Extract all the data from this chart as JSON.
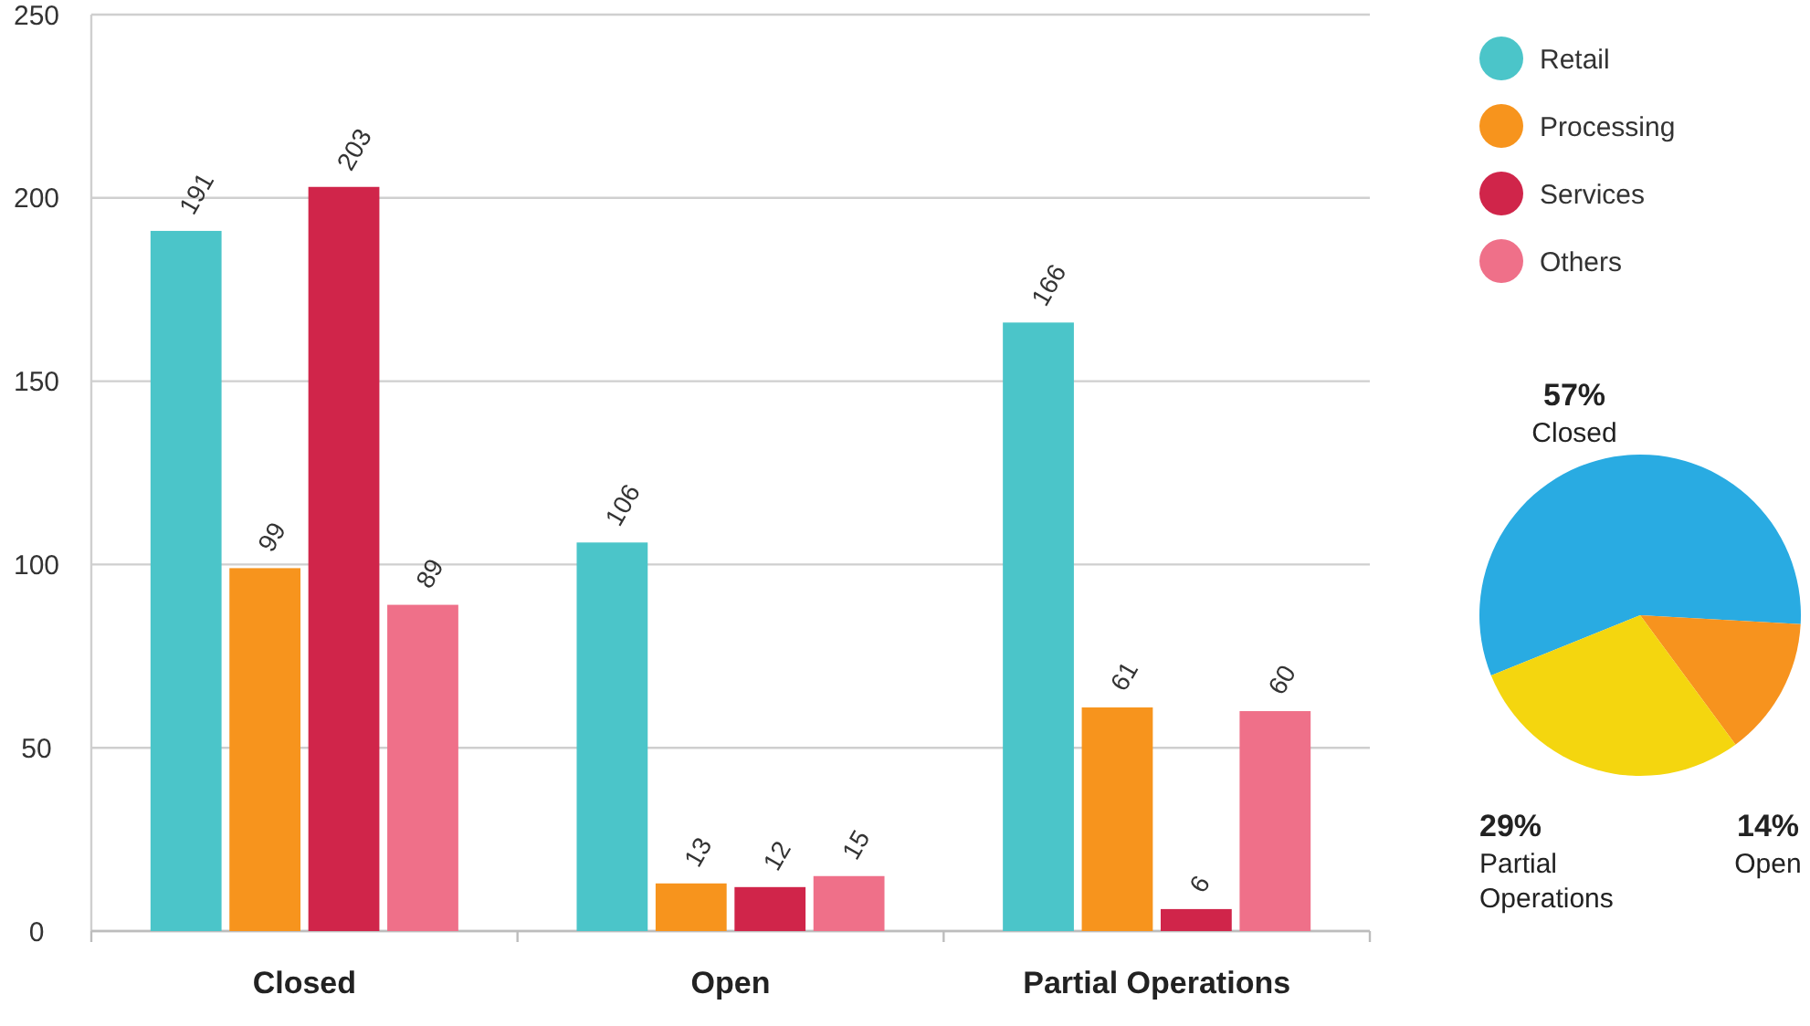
{
  "chart_data": [
    {
      "type": "bar",
      "categories": [
        "Closed",
        "Open",
        "Partial Operations"
      ],
      "series": [
        {
          "name": "Retail",
          "color": "#4bc5c9",
          "values": [
            191,
            106,
            166
          ]
        },
        {
          "name": "Processing",
          "color": "#f7941d",
          "values": [
            99,
            13,
            61
          ]
        },
        {
          "name": "Services",
          "color": "#d0254a",
          "values": [
            203,
            12,
            6
          ]
        },
        {
          "name": "Others",
          "color": "#ef7089",
          "values": [
            89,
            15,
            60
          ]
        }
      ],
      "ylim": [
        0,
        250
      ],
      "yticks": [
        0,
        50,
        100,
        150,
        200,
        250
      ],
      "grid": "y",
      "legend": "right",
      "data_labels": true
    },
    {
      "type": "pie",
      "categories": [
        "Closed",
        "Open",
        "Partial Operations"
      ],
      "values": [
        57,
        14,
        29
      ],
      "colors": [
        "#29abe2",
        "#f7931e",
        "#f4d60f"
      ],
      "value_labels": [
        "57%",
        "14%",
        "29%"
      ]
    }
  ]
}
